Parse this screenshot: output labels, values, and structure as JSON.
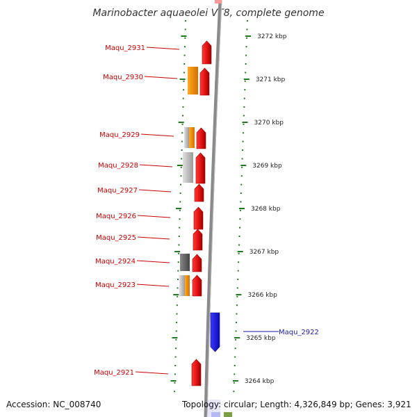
{
  "title": "Marinobacter aquaeolei VT8, complete genome",
  "footer": {
    "accession": "Accession: NC_008740",
    "topology": "Topology: circular; Length: 4,326,849 bp; Genes: 3,921"
  },
  "ruler_labels": [
    "3272 kbp",
    "3271 kbp",
    "3270 kbp",
    "3269 kbp",
    "3268 kbp",
    "3267 kbp",
    "3266 kbp",
    "3265 kbp",
    "3264 kbp"
  ],
  "genes": [
    {
      "label": "Maqu_2931",
      "strand": "forward",
      "color": "#ee1111"
    },
    {
      "label": "Maqu_2930",
      "strand": "forward",
      "color": "#ee1111"
    },
    {
      "label": "Maqu_2929",
      "strand": "forward",
      "color": "#ee1111"
    },
    {
      "label": "Maqu_2928",
      "strand": "forward",
      "color": "#ee1111"
    },
    {
      "label": "Maqu_2927",
      "strand": "forward",
      "color": "#ee1111"
    },
    {
      "label": "Maqu_2926",
      "strand": "forward",
      "color": "#ee1111"
    },
    {
      "label": "Maqu_2925",
      "strand": "forward",
      "color": "#ee1111"
    },
    {
      "label": "Maqu_2924",
      "strand": "forward",
      "color": "#ee1111"
    },
    {
      "label": "Maqu_2923",
      "strand": "forward",
      "color": "#ee1111"
    },
    {
      "label": "Maqu_2922",
      "strand": "reverse",
      "color": "#1a1aee"
    },
    {
      "label": "Maqu_2921",
      "strand": "forward",
      "color": "#ee1111"
    }
  ],
  "colors": {
    "forward_gene": "#ee1111",
    "reverse_gene": "#1a1aee",
    "feature_orange": "#f28c00",
    "feature_gray": "#b8b8b8",
    "feature_darkgray": "#666666",
    "backbone": "#8a8a8a",
    "tick_green": "#1f7a1f",
    "forward_label": "#cc0000",
    "reverse_label": "#1a1aaa"
  }
}
